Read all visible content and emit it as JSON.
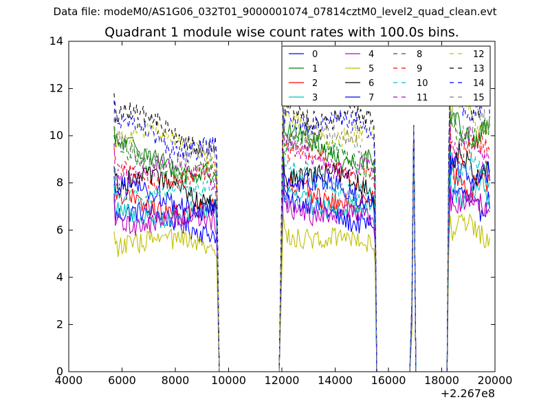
{
  "figure": {
    "suptitle": "Data file: modeM0/AS1G06_032T01_9000001074_07814cztM0_level2_quad_clean.evt",
    "title": "Quadrant 1 module wise count rates with 100.0s bins."
  },
  "chart_data": {
    "type": "line",
    "title": "Quadrant 1 module wise count rates with 100.0s bins.",
    "xlabel": "",
    "ylabel": "",
    "x_offset_label": "+2.267e8",
    "xlim": [
      4000,
      20000
    ],
    "ylim": [
      0,
      14
    ],
    "xticks": [
      4000,
      6000,
      8000,
      10000,
      12000,
      14000,
      16000,
      18000,
      20000
    ],
    "yticks": [
      0,
      2,
      4,
      6,
      8,
      10,
      12,
      14
    ],
    "grid": false,
    "legend": {
      "placement": "top-right",
      "columns": 4
    },
    "segments": [
      {
        "start": 5700,
        "end": 9500
      },
      {
        "start": 12050,
        "end": 15450
      },
      {
        "start": 16900,
        "end": 17000
      },
      {
        "start": 18300,
        "end": 19800
      }
    ],
    "series": [
      {
        "name": "0",
        "color": "#0000ff",
        "dash": "solid",
        "level": 6.4
      },
      {
        "name": "1",
        "color": "#008000",
        "dash": "solid",
        "level": 9.0
      },
      {
        "name": "2",
        "color": "#ff0000",
        "dash": "solid",
        "level": 7.1
      },
      {
        "name": "3",
        "color": "#00bfbf",
        "dash": "solid",
        "level": 6.8
      },
      {
        "name": "4",
        "color": "#bf00bf",
        "dash": "solid",
        "level": 6.4
      },
      {
        "name": "5",
        "color": "#bfbf00",
        "dash": "solid",
        "level": 5.4
      },
      {
        "name": "6",
        "color": "#000000",
        "dash": "solid",
        "level": 7.8
      },
      {
        "name": "7",
        "color": "#0000ff",
        "dash": "solid",
        "level": 7.4
      },
      {
        "name": "8",
        "color": "#008000",
        "dash": "dashed",
        "level": 8.9
      },
      {
        "name": "9",
        "color": "#ff0000",
        "dash": "dashed",
        "level": 8.4
      },
      {
        "name": "10",
        "color": "#00bfbf",
        "dash": "dashed",
        "level": 7.6
      },
      {
        "name": "11",
        "color": "#bf00bf",
        "dash": "dashed",
        "level": 8.5
      },
      {
        "name": "12",
        "color": "#bfbf00",
        "dash": "dashed",
        "level": 9.7
      },
      {
        "name": "13",
        "color": "#000000",
        "dash": "dashed",
        "level": 10.3
      },
      {
        "name": "14",
        "color": "#0000ff",
        "dash": "dashed",
        "level": 10.0
      },
      {
        "name": "15",
        "color": "#808080",
        "dash": "dashed",
        "level": 9.3
      }
    ]
  }
}
